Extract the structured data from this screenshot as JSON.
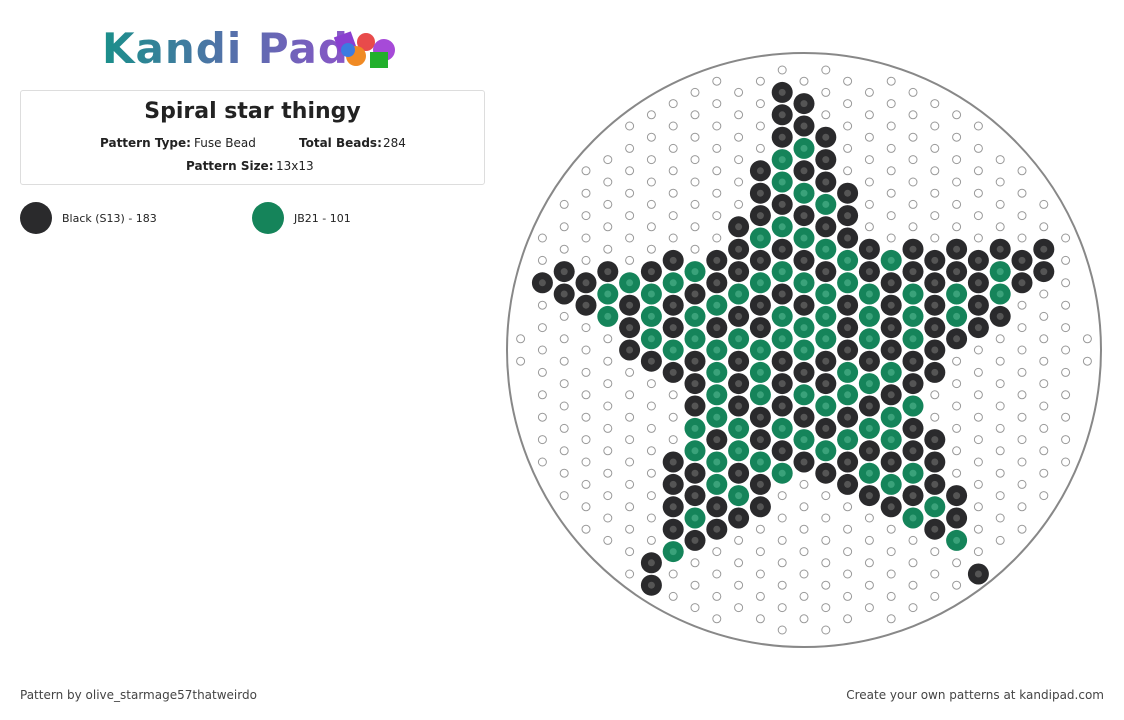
{
  "header": {
    "logo": "Kandi Pad"
  },
  "pattern": {
    "title": "Spiral star thingy",
    "fields": [
      {
        "label": "Pattern Type:",
        "value": "Fuse Bead"
      },
      {
        "label": "Total Beads:",
        "value": 284
      },
      {
        "label": "Pattern Size:",
        "value": "13x13"
      }
    ]
  },
  "legend": [
    {
      "label": "Black (S13) - 183"
    },
    {
      "label": "JB21 - 101"
    }
  ],
  "footer": {
    "author": "Pattern by olive_starmage57thatweirdo",
    "cta": "Create your own patterns at kandipad.com"
  }
}
